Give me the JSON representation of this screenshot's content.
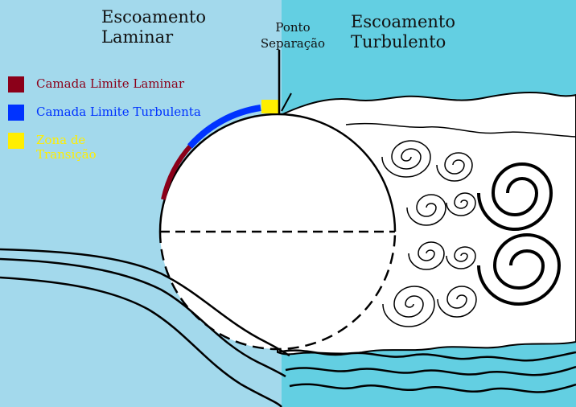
{
  "regions": {
    "laminar_title": [
      "Escoamento",
      "Laminar"
    ],
    "turbulent_title": [
      "Escoamento",
      "Turbulento"
    ]
  },
  "separation": {
    "label": [
      "Ponto",
      "Separação"
    ]
  },
  "legend": {
    "items": [
      {
        "label": [
          "Camada Limite Laminar"
        ],
        "color": "#8b0019"
      },
      {
        "label": [
          "Camada Limite Turbulenta"
        ],
        "color": "#0033ff"
      },
      {
        "label": [
          "Zona de",
          "Transição"
        ],
        "color": "#ffee00"
      }
    ]
  },
  "colors": {
    "laminar_bg": "#a3d9ec",
    "turbulent_bg": "#63cfe2",
    "body": "#ffffff",
    "outline": "#000000"
  }
}
